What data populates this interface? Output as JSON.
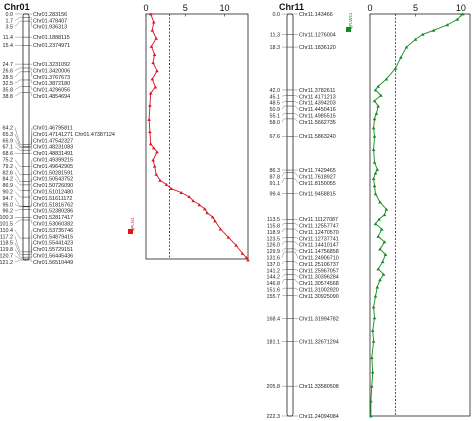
{
  "panels": [
    {
      "title": "Chr01",
      "color": "#e0141e",
      "legend": "qFLN1",
      "axis_ticks": [
        "0",
        "5",
        "10"
      ],
      "axis_max": 13,
      "threshold": 3.0,
      "chr_length": 121.2,
      "markers": [
        {
          "pos": "0.0",
          "name": "Chr01.283156",
          "cm": 0.0
        },
        {
          "pos": "1.7",
          "name": "Chr01.478407",
          "cm": 1.7
        },
        {
          "pos": "3.5",
          "name": "Chr01.936313",
          "cm": 3.5
        },
        {
          "pos": "11.4",
          "name": "Chr01.1888115",
          "cm": 11.4
        },
        {
          "pos": "15.4",
          "name": "Chr01.2374971",
          "cm": 15.4
        },
        {
          "pos": "24.7",
          "name": "Chr01.3231092",
          "cm": 24.7
        },
        {
          "pos": "26.6",
          "name": "Chr01.3420006",
          "cm": 26.6
        },
        {
          "pos": "28.5",
          "name": "Chr01.3767673",
          "cm": 28.5
        },
        {
          "pos": "32.5",
          "name": "Chr01.3872180",
          "cm": 32.5
        },
        {
          "pos": "35.8",
          "name": "Chr01.4296056",
          "cm": 35.8
        },
        {
          "pos": "38.8",
          "name": "Chr01.4854694",
          "cm": 38.8
        },
        {
          "pos": "64.2",
          "name": "Chr01.46795811",
          "cm": 64.2
        },
        {
          "pos": "65.3",
          "name": "Chr01.47141271 Chr01.47387124",
          "cm": 65.3
        },
        {
          "pos": "65.9",
          "name": "Chr01.47542327",
          "cm": 65.9
        },
        {
          "pos": "67.1",
          "name": "Chr01.48231083",
          "cm": 67.1
        },
        {
          "pos": "68.6",
          "name": "Chr01.48831491",
          "cm": 68.6
        },
        {
          "pos": "75.2",
          "name": "Chr01.49399215",
          "cm": 75.2
        },
        {
          "pos": "79.2",
          "name": "Chr01.49642905",
          "cm": 79.2
        },
        {
          "pos": "82.6",
          "name": "Chr01.50281591",
          "cm": 82.6
        },
        {
          "pos": "84.2",
          "name": "Chr01.50543752",
          "cm": 84.2
        },
        {
          "pos": "86.9",
          "name": "Chr01.50726090",
          "cm": 86.9
        },
        {
          "pos": "90.2",
          "name": "Chr01.51012480",
          "cm": 90.2
        },
        {
          "pos": "94.7",
          "name": "Chr01.51611172",
          "cm": 94.7
        },
        {
          "pos": "95.0",
          "name": "Chr01.51816762",
          "cm": 95.0
        },
        {
          "pos": "96.2",
          "name": "Chr01.52380286",
          "cm": 96.2
        },
        {
          "pos": "100.3",
          "name": "Chr01.52817417",
          "cm": 100.3
        },
        {
          "pos": "101.5",
          "name": "Chr01.53060382",
          "cm": 101.5
        },
        {
          "pos": "110.4",
          "name": "Chr01.53735746",
          "cm": 110.4
        },
        {
          "pos": "117.2",
          "name": "Chr01.54879415",
          "cm": 117.2
        },
        {
          "pos": "118.5",
          "name": "Chr01.55441423",
          "cm": 118.5
        },
        {
          "pos": "119.8",
          "name": "Chr01.55729151",
          "cm": 119.8
        },
        {
          "pos": "120.7",
          "name": "Chr01.56445436",
          "cm": 120.7
        },
        {
          "pos": "121.2",
          "name": "Chr01.56510449",
          "cm": 121.2
        }
      ],
      "lod_curve": [
        [
          0,
          0.6
        ],
        [
          4,
          1.0
        ],
        [
          8,
          0.8
        ],
        [
          12,
          1.3
        ],
        [
          16,
          0.7
        ],
        [
          20,
          1.1
        ],
        [
          24,
          0.9
        ],
        [
          28,
          1.4
        ],
        [
          32,
          0.8
        ],
        [
          36,
          1.2
        ],
        [
          39,
          0.6
        ],
        [
          45,
          0.5
        ],
        [
          52,
          0.4
        ],
        [
          58,
          0.5
        ],
        [
          64,
          0.6
        ],
        [
          66,
          1.0
        ],
        [
          68,
          1.4
        ],
        [
          72,
          0.9
        ],
        [
          75,
          1.1
        ],
        [
          79,
          1.3
        ],
        [
          82,
          1.8
        ],
        [
          84,
          2.6
        ],
        [
          86,
          3.2
        ],
        [
          88,
          4.5
        ],
        [
          90,
          5.5
        ],
        [
          92,
          6.0
        ],
        [
          94,
          6.8
        ],
        [
          96,
          7.5
        ],
        [
          98,
          7.8
        ],
        [
          100,
          8.5
        ],
        [
          102,
          8.8
        ],
        [
          106,
          9.5
        ],
        [
          110,
          10.5
        ],
        [
          114,
          11.5
        ],
        [
          118,
          12.3
        ],
        [
          120,
          12.8
        ],
        [
          121.2,
          13.0
        ]
      ]
    },
    {
      "title": "Chr11",
      "color": "#128a1e",
      "legend": "qFLW11",
      "axis_ticks": [
        "0",
        "5",
        "10"
      ],
      "axis_max": 11,
      "threshold": 2.8,
      "chr_length": 222.3,
      "markers": [
        {
          "pos": "0.0",
          "name": "Chr11.143466",
          "cm": 0.0
        },
        {
          "pos": "11.3",
          "name": "Chr11.1276004",
          "cm": 11.3
        },
        {
          "pos": "18.3",
          "name": "Chr11.1836120",
          "cm": 18.3
        },
        {
          "pos": "42.0",
          "name": "Chr11.3782611",
          "cm": 42.0
        },
        {
          "pos": "45.1",
          "name": "Chr11.4171213",
          "cm": 45.1
        },
        {
          "pos": "48.5",
          "name": "Chr11.4394203",
          "cm": 48.5
        },
        {
          "pos": "50.9",
          "name": "Chr11.4450416",
          "cm": 50.9
        },
        {
          "pos": "55.1",
          "name": "Chr11.4985515",
          "cm": 55.1
        },
        {
          "pos": "58.0",
          "name": "Chr11.5662735",
          "cm": 58.0
        },
        {
          "pos": "67.6",
          "name": "Chr11.5863240",
          "cm": 67.6
        },
        {
          "pos": "86.3",
          "name": "Chr11.7429465",
          "cm": 86.3
        },
        {
          "pos": "87.8",
          "name": "Chr11.7618927",
          "cm": 87.8
        },
        {
          "pos": "91.1",
          "name": "Chr11.8150055",
          "cm": 91.1
        },
        {
          "pos": "99.4",
          "name": "Chr11.9458815",
          "cm": 99.4
        },
        {
          "pos": "113.5",
          "name": "Chr11.11127087",
          "cm": 113.5
        },
        {
          "pos": "115.8",
          "name": "Chr11.12557747",
          "cm": 115.8
        },
        {
          "pos": "118.9",
          "name": "Chr11.12470570",
          "cm": 118.9
        },
        {
          "pos": "123.5",
          "name": "Chr11.12737741",
          "cm": 123.5
        },
        {
          "pos": "126.0",
          "name": "Chr11.14410147",
          "cm": 126.0
        },
        {
          "pos": "129.9",
          "name": "Chr11.14756858",
          "cm": 129.9
        },
        {
          "pos": "131.6",
          "name": "Chr11.24906710",
          "cm": 131.6
        },
        {
          "pos": "137.0",
          "name": "Chr11.25106737",
          "cm": 137.0
        },
        {
          "pos": "141.2",
          "name": "Chr11.25967057",
          "cm": 141.2
        },
        {
          "pos": "144.2",
          "name": "Chr11.30396284",
          "cm": 144.2
        },
        {
          "pos": "146.8",
          "name": "Chr11.30574568",
          "cm": 146.8
        },
        {
          "pos": "151.6",
          "name": "Chr11.31002920",
          "cm": 151.6
        },
        {
          "pos": "155.7",
          "name": "Chr11.30925090",
          "cm": 155.7
        },
        {
          "pos": "168.4",
          "name": "Chr11.31994782",
          "cm": 168.4
        },
        {
          "pos": "181.1",
          "name": "Chr11.32671294",
          "cm": 181.1
        },
        {
          "pos": "205.8",
          "name": "Chr11.33580508",
          "cm": 205.8
        },
        {
          "pos": "222.3",
          "name": "Chr11.24094084",
          "cm": 222.3
        }
      ],
      "lod_curve": [
        [
          0,
          10.2
        ],
        [
          3,
          9.6
        ],
        [
          6,
          8.5
        ],
        [
          9,
          7.0
        ],
        [
          11.3,
          5.8
        ],
        [
          14,
          5.0
        ],
        [
          18.3,
          4.0
        ],
        [
          24,
          3.4
        ],
        [
          30,
          2.8
        ],
        [
          36,
          1.8
        ],
        [
          40,
          0.9
        ],
        [
          42,
          0.6
        ],
        [
          45,
          1.2
        ],
        [
          48,
          0.5
        ],
        [
          51,
          0.9
        ],
        [
          55,
          0.7
        ],
        [
          58,
          0.5
        ],
        [
          63,
          0.4
        ],
        [
          67.6,
          0.5
        ],
        [
          75,
          0.4
        ],
        [
          82,
          0.5
        ],
        [
          86,
          0.8
        ],
        [
          88,
          0.6
        ],
        [
          91,
          0.4
        ],
        [
          95,
          0.5
        ],
        [
          99.4,
          0.6
        ],
        [
          104,
          1.1
        ],
        [
          108,
          1.8
        ],
        [
          111,
          1.6
        ],
        [
          113.5,
          1.0
        ],
        [
          116,
          0.6
        ],
        [
          119,
          1.3
        ],
        [
          123,
          0.9
        ],
        [
          126,
          1.6
        ],
        [
          130,
          1.1
        ],
        [
          133,
          1.7
        ],
        [
          137,
          1.4
        ],
        [
          141,
          0.9
        ],
        [
          144,
          1.5
        ],
        [
          147,
          1.1
        ],
        [
          151,
          0.8
        ],
        [
          156,
          0.6
        ],
        [
          162,
          0.4
        ],
        [
          168,
          0.5
        ],
        [
          175,
          0.3
        ],
        [
          181,
          0.4
        ],
        [
          190,
          0.2
        ],
        [
          198,
          0.3
        ],
        [
          205.8,
          0.2
        ],
        [
          214,
          0.1
        ],
        [
          222.3,
          0.1
        ]
      ]
    }
  ]
}
